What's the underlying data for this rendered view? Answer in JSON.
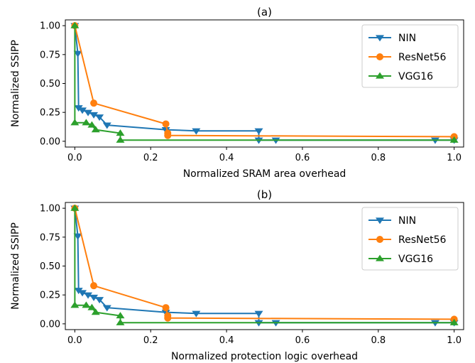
{
  "chart_data": [
    {
      "type": "line",
      "title": "(a)",
      "xlabel": "Normalized SRAM area overhead",
      "ylabel": "Normalized SSIPP",
      "xlim": [
        -0.025,
        1.025
      ],
      "ylim": [
        -0.05,
        1.05
      ],
      "xticks": [
        0.0,
        0.2,
        0.4,
        0.6,
        0.8,
        1.0
      ],
      "xtick_labels": [
        "0.0",
        "0.2",
        "0.4",
        "0.6",
        "0.8",
        "1.0"
      ],
      "yticks": [
        0.0,
        0.25,
        0.5,
        0.75,
        1.0
      ],
      "ytick_labels": [
        "0.00",
        "0.25",
        "0.50",
        "0.75",
        "1.00"
      ],
      "grid": false,
      "legend_position": "top-right",
      "series": [
        {
          "name": "NIN",
          "color": "#1f77b4",
          "marker": "triangle-down",
          "x": [
            0.0,
            0.008,
            0.01,
            0.02,
            0.035,
            0.05,
            0.065,
            0.085,
            0.24,
            0.32,
            0.485,
            0.485,
            0.53,
            0.95,
            1.0
          ],
          "y": [
            1.0,
            0.76,
            0.29,
            0.27,
            0.25,
            0.23,
            0.21,
            0.14,
            0.1,
            0.09,
            0.09,
            0.01,
            0.01,
            0.01,
            0.01
          ]
        },
        {
          "name": "ResNet56",
          "color": "#ff7f0e",
          "marker": "circle",
          "x": [
            0.0,
            0.05,
            0.24,
            0.245,
            0.245,
            1.0
          ],
          "y": [
            1.0,
            0.33,
            0.15,
            0.07,
            0.05,
            0.04
          ]
        },
        {
          "name": "VGG16",
          "color": "#2ca02c",
          "marker": "triangle-up",
          "x": [
            0.0,
            0.0,
            0.03,
            0.045,
            0.055,
            0.12,
            0.12,
            1.0
          ],
          "y": [
            1.0,
            0.16,
            0.16,
            0.14,
            0.1,
            0.07,
            0.01,
            0.01
          ]
        }
      ]
    },
    {
      "type": "line",
      "title": "(b)",
      "xlabel": "Normalized protection logic overhead",
      "ylabel": "Normalized SSIPP",
      "xlim": [
        -0.025,
        1.025
      ],
      "ylim": [
        -0.05,
        1.05
      ],
      "xticks": [
        0.0,
        0.2,
        0.4,
        0.6,
        0.8,
        1.0
      ],
      "xtick_labels": [
        "0.0",
        "0.2",
        "0.4",
        "0.6",
        "0.8",
        "1.0"
      ],
      "yticks": [
        0.0,
        0.25,
        0.5,
        0.75,
        1.0
      ],
      "ytick_labels": [
        "0.00",
        "0.25",
        "0.50",
        "0.75",
        "1.00"
      ],
      "grid": false,
      "legend_position": "top-right",
      "series": [
        {
          "name": "NIN",
          "color": "#1f77b4",
          "marker": "triangle-down",
          "x": [
            0.0,
            0.008,
            0.01,
            0.02,
            0.035,
            0.05,
            0.065,
            0.085,
            0.24,
            0.32,
            0.485,
            0.485,
            0.53,
            0.95,
            1.0
          ],
          "y": [
            1.0,
            0.76,
            0.29,
            0.27,
            0.25,
            0.23,
            0.21,
            0.14,
            0.1,
            0.09,
            0.09,
            0.01,
            0.01,
            0.01,
            0.01
          ]
        },
        {
          "name": "ResNet56",
          "color": "#ff7f0e",
          "marker": "circle",
          "x": [
            0.0,
            0.05,
            0.24,
            0.245,
            0.245,
            1.0
          ],
          "y": [
            1.0,
            0.33,
            0.14,
            0.07,
            0.05,
            0.04
          ]
        },
        {
          "name": "VGG16",
          "color": "#2ca02c",
          "marker": "triangle-up",
          "x": [
            0.0,
            0.0,
            0.03,
            0.045,
            0.055,
            0.12,
            0.12,
            1.0
          ],
          "y": [
            1.0,
            0.16,
            0.16,
            0.14,
            0.1,
            0.07,
            0.01,
            0.01
          ]
        }
      ]
    }
  ]
}
